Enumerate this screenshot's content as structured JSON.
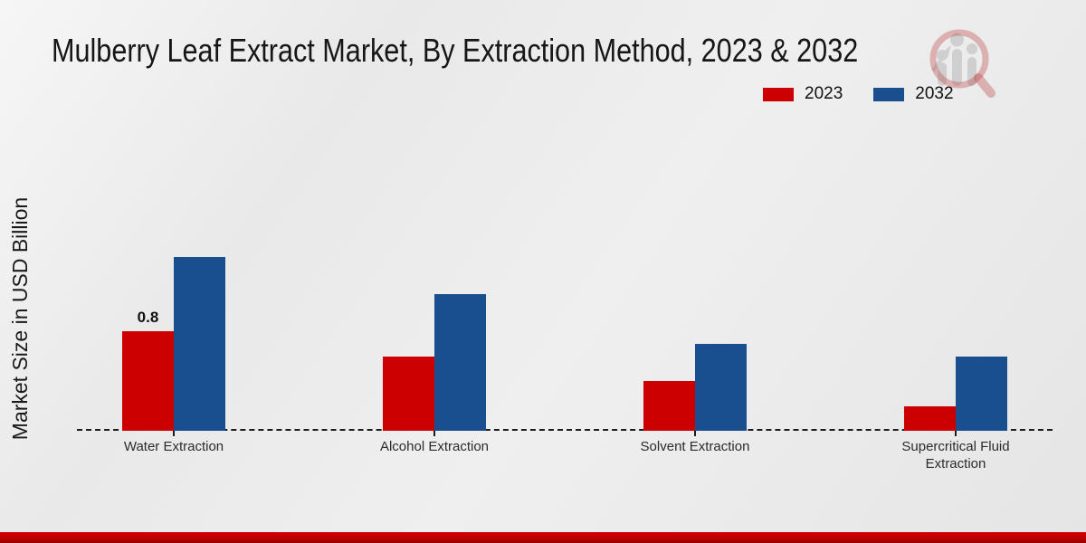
{
  "page": {
    "title": "Mulberry Leaf Extract Market, By Extraction Method, 2023 & 2032"
  },
  "colors": {
    "series_2023": "#cc0000",
    "series_2032": "#1a4f8f",
    "footer_band": "#c00000",
    "title_text": "#161616"
  },
  "legend": {
    "items": [
      {
        "label": "2023",
        "color": "#cc0000"
      },
      {
        "label": "2032",
        "color": "#1a4f8f"
      }
    ]
  },
  "watermark": {
    "icon": "magnifier-bar-chart-logo"
  },
  "chart_data": {
    "type": "bar",
    "title": "Mulberry Leaf Extract Market, By Extraction Method, 2023 & 2032",
    "xlabel": "",
    "ylabel": "Market Size in USD Billion",
    "categories": [
      "Water Extraction",
      "Alcohol Extraction",
      "Solvent Extraction",
      "Supercritical Fluid Extraction"
    ],
    "series": [
      {
        "name": "2023",
        "color": "#cc0000",
        "values": [
          0.8,
          0.6,
          0.4,
          0.2
        ]
      },
      {
        "name": "2032",
        "color": "#1a4f8f",
        "values": [
          1.4,
          1.1,
          0.7,
          0.6
        ]
      }
    ],
    "annotations": [
      {
        "series": "2023",
        "category_index": 0,
        "text": "0.8"
      }
    ],
    "ylim": [
      0,
      1.5
    ],
    "grid": false,
    "y_axis_ticks_visible": false,
    "legend_position": "top-right",
    "baseline_style": "dashed"
  }
}
